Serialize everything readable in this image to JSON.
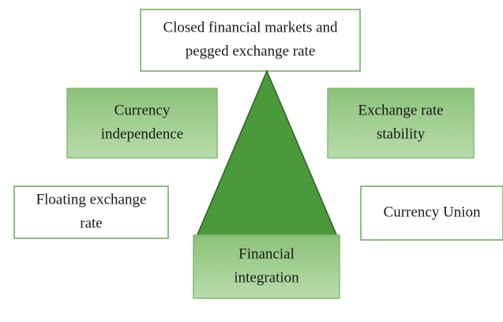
{
  "nodes": [
    {
      "lines": [
        "Closed financial markets and",
        "pegged exchange rate"
      ]
    },
    {
      "lines": [
        "Currency",
        "independence"
      ]
    },
    {
      "lines": [
        "Exchange rate",
        "stability"
      ]
    },
    {
      "lines": [
        "Floating exchange",
        "rate"
      ]
    },
    {
      "lines": [
        "Currency Union"
      ]
    },
    {
      "lines": [
        "Financial",
        "integration"
      ]
    }
  ]
}
